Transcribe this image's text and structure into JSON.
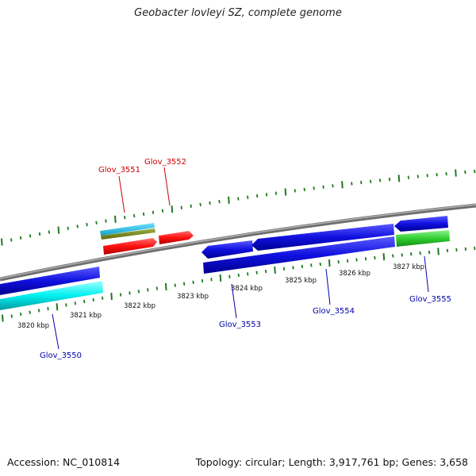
{
  "title": "Geobacter lovleyi SZ, complete genome",
  "footer": {
    "accession": "Accession: NC_010814",
    "stats": "Topology: circular; Length: 3,917,761 bp; Genes: 3,658"
  },
  "colors": {
    "backbone": "#8a8a8a",
    "tick": "#1f7a1f",
    "forward_label": "#cc0000",
    "reverse_label": "#0000aa"
  },
  "axis": {
    "tick_labels": [
      {
        "pos_kbp": 3820,
        "text": "3820 kbp"
      },
      {
        "pos_kbp": 3821,
        "text": "3821 kbp"
      },
      {
        "pos_kbp": 3822,
        "text": "3822 kbp"
      },
      {
        "pos_kbp": 3823,
        "text": "3823 kbp"
      },
      {
        "pos_kbp": 3824,
        "text": "3824 kbp"
      },
      {
        "pos_kbp": 3825,
        "text": "3825 kbp"
      },
      {
        "pos_kbp": 3826,
        "text": "3826 kbp"
      },
      {
        "pos_kbp": 3827,
        "text": "3827 kbp"
      }
    ]
  },
  "genes": [
    {
      "label": "Glov_3550",
      "strand": "reverse",
      "color": "blue"
    },
    {
      "label": "Glov_3551",
      "strand": "forward",
      "color": "red"
    },
    {
      "label": "Glov_3552",
      "strand": "forward",
      "color": "red"
    },
    {
      "label": "Glov_3553",
      "strand": "reverse",
      "color": "blue"
    },
    {
      "label": "Glov_3554",
      "strand": "reverse",
      "color": "blue"
    },
    {
      "label": "Glov_3555",
      "strand": "reverse",
      "color": "green"
    }
  ]
}
